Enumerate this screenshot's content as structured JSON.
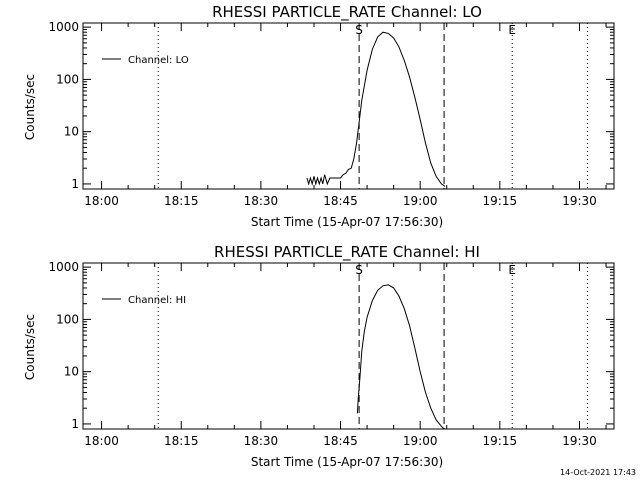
{
  "footer": {
    "timestamp": "14-Oct-2021 17:43"
  },
  "chart_data": [
    {
      "type": "line",
      "title": "RHESSI PARTICLE_RATE Channel: LO",
      "xlabel": "Start Time (15-Apr-07 17:56:30)",
      "ylabel": "Counts/sec",
      "yscale": "log",
      "xlim": [
        "17:56:30",
        "19:36:30"
      ],
      "ylim": [
        0.8,
        1200
      ],
      "x_ticks": [
        "18:00",
        "18:15",
        "18:30",
        "18:45",
        "19:00",
        "19:15",
        "19:30"
      ],
      "y_ticks": [
        "1",
        "10",
        "100",
        "1000"
      ],
      "legend": {
        "position": "top-left",
        "entries": [
          "Channel: LO"
        ]
      },
      "markers": [
        {
          "label": "S",
          "time": "18:48:30",
          "style": "dashed"
        },
        {
          "label": "",
          "time": "19:04:30",
          "style": "dashed"
        },
        {
          "label": "E",
          "time": "19:17:20",
          "style": "dotted"
        }
      ],
      "extra_dotted_lines": [
        "18:10:40",
        "19:31:30"
      ],
      "series": [
        {
          "name": "Channel: LO",
          "x": [
            "18:38:40",
            "18:39:00",
            "18:39:20",
            "18:39:40",
            "18:40:00",
            "18:40:20",
            "18:40:40",
            "18:41:00",
            "18:41:20",
            "18:41:40",
            "18:42:00",
            "18:42:30",
            "18:43:00",
            "18:43:30",
            "18:44:00",
            "18:45:00",
            "18:45:30",
            "18:46:00",
            "18:46:30",
            "18:47:00",
            "18:47:30",
            "18:48:00",
            "18:48:30",
            "18:49:00",
            "18:50:00",
            "18:51:00",
            "18:52:00",
            "18:53:00",
            "18:54:00",
            "18:55:00",
            "18:56:00",
            "18:57:00",
            "18:58:00",
            "18:59:00",
            "19:00:00",
            "19:01:00",
            "19:02:00",
            "19:03:00",
            "19:04:00",
            "19:04:40"
          ],
          "y": [
            1.3,
            1,
            1.3,
            1,
            1.4,
            1,
            1.3,
            1,
            1.3,
            1,
            1.5,
            1,
            1.3,
            1.3,
            1.3,
            1.3,
            1.5,
            1.6,
            1.9,
            2,
            3,
            6,
            15,
            40,
            150,
            380,
            650,
            800,
            760,
            620,
            420,
            230,
            110,
            45,
            17,
            6,
            2.5,
            1.4,
            1,
            0.9
          ]
        }
      ]
    },
    {
      "type": "line",
      "title": "RHESSI PARTICLE_RATE Channel: HI",
      "xlabel": "Start Time (15-Apr-07 17:56:30)",
      "ylabel": "Counts/sec",
      "yscale": "log",
      "xlim": [
        "17:56:30",
        "19:36:30"
      ],
      "ylim": [
        0.8,
        1200
      ],
      "x_ticks": [
        "18:00",
        "18:15",
        "18:30",
        "18:45",
        "19:00",
        "19:15",
        "19:30"
      ],
      "y_ticks": [
        "1",
        "10",
        "100",
        "1000"
      ],
      "legend": {
        "position": "top-left",
        "entries": [
          "Channel: HI"
        ]
      },
      "markers": [
        {
          "label": "S",
          "time": "18:48:30",
          "style": "dashed"
        },
        {
          "label": "",
          "time": "19:04:30",
          "style": "dashed"
        },
        {
          "label": "E",
          "time": "19:17:20",
          "style": "dotted"
        }
      ],
      "extra_dotted_lines": [
        "18:10:40",
        "19:31:30"
      ],
      "series": [
        {
          "name": "Channel: HI",
          "x": [
            "18:48:10",
            "18:48:20",
            "18:48:40",
            "18:49:00",
            "18:49:30",
            "18:50:00",
            "18:51:00",
            "18:52:00",
            "18:53:00",
            "18:54:00",
            "18:55:00",
            "18:56:00",
            "18:57:00",
            "18:58:00",
            "18:59:00",
            "19:00:00",
            "19:01:00",
            "19:02:00",
            "19:03:00",
            "19:04:00",
            "19:04:30"
          ],
          "y": [
            1.6,
            3,
            8,
            25,
            60,
            110,
            230,
            360,
            440,
            460,
            400,
            280,
            160,
            75,
            28,
            10,
            4,
            2,
            1.2,
            0.9,
            0.8
          ]
        }
      ]
    }
  ]
}
